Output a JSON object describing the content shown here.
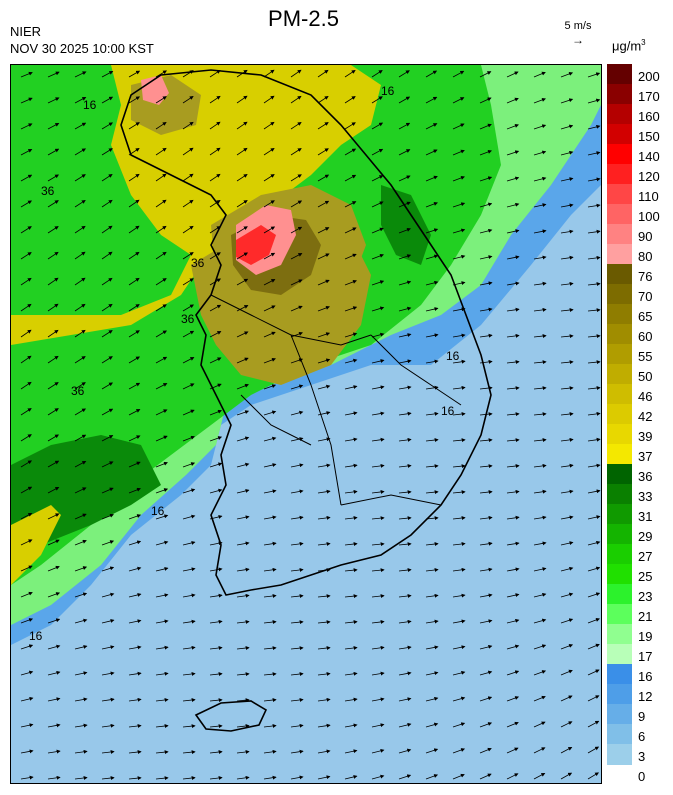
{
  "header": {
    "title": "PM-2.5",
    "source": "NIER",
    "timestamp": "NOV 30 2025 10:00 KST",
    "wind_reference": "5 m/s",
    "unit_prefix": "μg/m",
    "unit_exponent": "3"
  },
  "legend": {
    "labels": [
      "200",
      "170",
      "160",
      "150",
      "140",
      "120",
      "110",
      "100",
      "90",
      "80",
      "76",
      "70",
      "65",
      "60",
      "55",
      "50",
      "46",
      "42",
      "39",
      "37",
      "36",
      "33",
      "31",
      "29",
      "27",
      "25",
      "23",
      "21",
      "19",
      "17",
      "16",
      "12",
      "9",
      "6",
      "3",
      "0"
    ],
    "colors": [
      "#640000",
      "#8a0000",
      "#b40000",
      "#d20000",
      "#ff0000",
      "#ff2020",
      "#ff4646",
      "#ff6464",
      "#ff8282",
      "#ffa0a0",
      "#6a5a00",
      "#7d6c00",
      "#8f7d00",
      "#a08d00",
      "#b09d00",
      "#c0ad00",
      "#cfbd00",
      "#dccb00",
      "#e8d800",
      "#f4e800",
      "#006400",
      "#0a8000",
      "#109a00",
      "#14b400",
      "#1ace00",
      "#20e000",
      "#2cf22c",
      "#5cff5c",
      "#90ff90",
      "#b8ffb8",
      "#3a8fe8",
      "#4e9ee8",
      "#66aee8",
      "#80bfe8",
      "#9ccfea"
    ]
  },
  "map": {
    "contour_labels": [
      "16",
      "36",
      "36",
      "16",
      "36",
      "16",
      "16",
      "16",
      "16",
      "36"
    ]
  },
  "colors": {
    "blue_light": "#98c8ea",
    "blue": "#5aa6ea",
    "green_light": "#7cf07c",
    "green": "#22d022",
    "green_dark": "#0a8a0a",
    "yellow": "#d8cf00",
    "olive": "#a89c20",
    "olive_dark": "#7d6e10",
    "pink": "#ff9090",
    "red": "#ff2a2a"
  }
}
